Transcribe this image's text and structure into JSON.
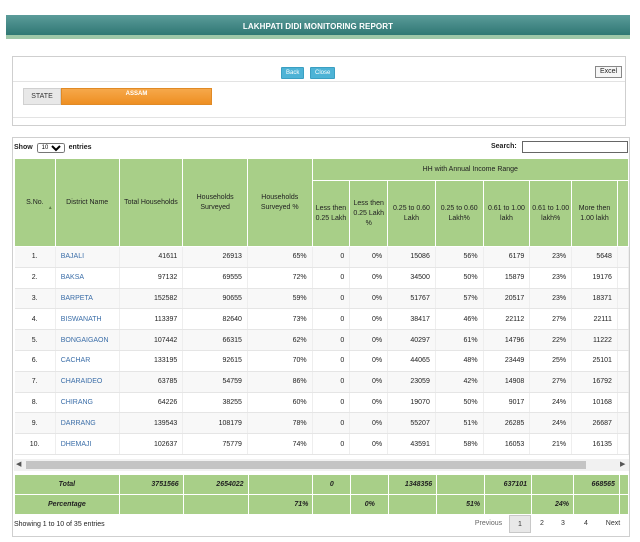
{
  "header": {
    "title": "LAKHPATI DIDI MONITORING REPORT"
  },
  "toolbar": {
    "back_label": "Back",
    "close_label": "Close",
    "excel_label": "Excel"
  },
  "filter": {
    "state_label": "STATE",
    "state_value": "ASSAM"
  },
  "table_controls": {
    "show_label": "Show",
    "entries_value": "10",
    "entries_label": "entries",
    "search_label": "Search:"
  },
  "columns": {
    "sno": "S.No.",
    "district": "District Name",
    "total_hh": "Total Households",
    "hh_surveyed": "Households Surveyed",
    "hh_surveyed_pct": "Households Surveyed %",
    "income_group": "HH with Annual Income Range",
    "lt025": "Less then 0.25 Lakh",
    "lt025_pct": "Less then 0.25 Lakh %",
    "r025_060": "0.25 to 0.60 Lakh",
    "r025_060_pct": "0.25 to 0.60 Lakh%",
    "r061_100": "0.61 to 1.00 lakh",
    "r061_100_pct": "0.61 to 1.00 lakh%",
    "gt100": "More then 1.00 lakh"
  },
  "rows": [
    {
      "sno": "1.",
      "district": "BAJALI",
      "total": "41611",
      "surveyed": "26913",
      "pct": "65%",
      "lt025": "0",
      "lt025p": "0%",
      "a": "15086",
      "ap": "56%",
      "b": "6179",
      "bp": "23%",
      "c": "5648"
    },
    {
      "sno": "2.",
      "district": "BAKSA",
      "total": "97132",
      "surveyed": "69555",
      "pct": "72%",
      "lt025": "0",
      "lt025p": "0%",
      "a": "34500",
      "ap": "50%",
      "b": "15879",
      "bp": "23%",
      "c": "19176"
    },
    {
      "sno": "3.",
      "district": "BARPETA",
      "total": "152582",
      "surveyed": "90655",
      "pct": "59%",
      "lt025": "0",
      "lt025p": "0%",
      "a": "51767",
      "ap": "57%",
      "b": "20517",
      "bp": "23%",
      "c": "18371"
    },
    {
      "sno": "4.",
      "district": "BISWANATH",
      "total": "113397",
      "surveyed": "82640",
      "pct": "73%",
      "lt025": "0",
      "lt025p": "0%",
      "a": "38417",
      "ap": "46%",
      "b": "22112",
      "bp": "27%",
      "c": "22111"
    },
    {
      "sno": "5.",
      "district": "BONGAIGAON",
      "total": "107442",
      "surveyed": "66315",
      "pct": "62%",
      "lt025": "0",
      "lt025p": "0%",
      "a": "40297",
      "ap": "61%",
      "b": "14796",
      "bp": "22%",
      "c": "11222"
    },
    {
      "sno": "6.",
      "district": "CACHAR",
      "total": "133195",
      "surveyed": "92615",
      "pct": "70%",
      "lt025": "0",
      "lt025p": "0%",
      "a": "44065",
      "ap": "48%",
      "b": "23449",
      "bp": "25%",
      "c": "25101"
    },
    {
      "sno": "7.",
      "district": "CHARAIDEO",
      "total": "63785",
      "surveyed": "54759",
      "pct": "86%",
      "lt025": "0",
      "lt025p": "0%",
      "a": "23059",
      "ap": "42%",
      "b": "14908",
      "bp": "27%",
      "c": "16792"
    },
    {
      "sno": "8.",
      "district": "CHIRANG",
      "total": "64226",
      "surveyed": "38255",
      "pct": "60%",
      "lt025": "0",
      "lt025p": "0%",
      "a": "19070",
      "ap": "50%",
      "b": "9017",
      "bp": "24%",
      "c": "10168"
    },
    {
      "sno": "9.",
      "district": "DARRANG",
      "total": "139543",
      "surveyed": "108179",
      "pct": "78%",
      "lt025": "0",
      "lt025p": "0%",
      "a": "55207",
      "ap": "51%",
      "b": "26285",
      "bp": "24%",
      "c": "26687"
    },
    {
      "sno": "10.",
      "district": "DHEMAJI",
      "total": "102637",
      "surveyed": "75779",
      "pct": "74%",
      "lt025": "0",
      "lt025p": "0%",
      "a": "43591",
      "ap": "58%",
      "b": "16053",
      "bp": "21%",
      "c": "16135"
    }
  ],
  "totals": {
    "label": "Total",
    "total": "3751566",
    "surveyed": "2654022",
    "lt025": "0",
    "a": "1348356",
    "b": "637101",
    "c": "668565"
  },
  "percentage": {
    "label": "Percentage",
    "surveyed_pct": "71%",
    "lt025p": "0%",
    "ap": "51%",
    "bp": "24%"
  },
  "footer": {
    "info": "Showing 1 to 10 of 35 entries",
    "previous": "Previous",
    "next": "Next",
    "pages": [
      "1",
      "2",
      "3",
      "4"
    ]
  },
  "colors": {
    "header": "#2f7773",
    "table_header": "#a8cf88",
    "state_select": "#ee8f22",
    "button": "#4db3d6",
    "link": "#3b6ea8"
  }
}
